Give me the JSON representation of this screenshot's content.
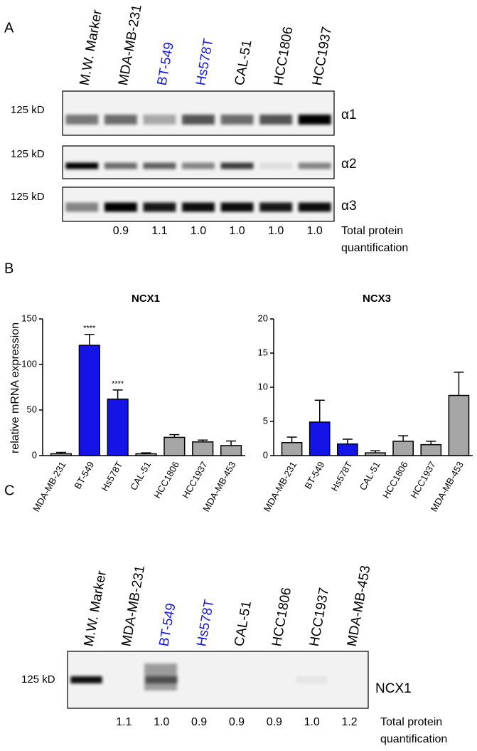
{
  "panel_labels": [
    "A",
    "B",
    "C"
  ],
  "blot_a": {
    "lanes": [
      {
        "label": "M.W. Marker",
        "color": "#000000"
      },
      {
        "label": "MDA-MB-231",
        "color": "#000000"
      },
      {
        "label": "BT-549",
        "color": "#1a1ad6"
      },
      {
        "label": "Hs578T",
        "color": "#1a1ad6"
      },
      {
        "label": "CAL-51",
        "color": "#000000"
      },
      {
        "label": "HCC1806",
        "color": "#000000"
      },
      {
        "label": "HCC1937",
        "color": "#000000"
      }
    ],
    "marker": "125 kD",
    "bands": [
      "α1",
      "α2",
      "α3"
    ],
    "quantification": [
      "0.9",
      "1.1",
      "1.0",
      "1.0",
      "1.0",
      "1.0"
    ],
    "quantification_label": [
      "Total protein",
      "quantification"
    ]
  },
  "chart_data": [
    {
      "type": "bar",
      "title": "NCX1",
      "ylabel": "relative mRNA expression",
      "categories": [
        "MDA-MB-231",
        "BT-549",
        "Hs578T",
        "CAL-51",
        "HCC1806",
        "HCC1937",
        "MDA-MB-453"
      ],
      "values": [
        2,
        121,
        62,
        2,
        20,
        15,
        11
      ],
      "errors": [
        1.5,
        12,
        10,
        1,
        3,
        2,
        5
      ],
      "colors": [
        "#a6a6a6",
        "#1414e6",
        "#1414e6",
        "#a6a6a6",
        "#a6a6a6",
        "#a6a6a6",
        "#a6a6a6"
      ],
      "significance": [
        null,
        "****",
        "****",
        null,
        null,
        null,
        null
      ],
      "ylim": [
        0,
        150
      ],
      "yticks": [
        0,
        50,
        100,
        150
      ]
    },
    {
      "type": "bar",
      "title": "NCX3",
      "categories": [
        "MDA-MB-231",
        "BT-549",
        "Hs578T",
        "CAL-51",
        "HCC1806",
        "HCC1937",
        "MDA-MB-453"
      ],
      "values": [
        1.9,
        4.9,
        1.7,
        0.4,
        2.1,
        1.6,
        8.8
      ],
      "errors": [
        0.8,
        3.2,
        0.7,
        0.3,
        0.8,
        0.5,
        3.4
      ],
      "colors": [
        "#a6a6a6",
        "#1414e6",
        "#1414e6",
        "#a6a6a6",
        "#a6a6a6",
        "#a6a6a6",
        "#a6a6a6"
      ],
      "ylim": [
        0,
        20
      ],
      "yticks": [
        0,
        5,
        10,
        15,
        20
      ]
    }
  ],
  "blot_c": {
    "lanes": [
      {
        "label": "M.W. Marker",
        "color": "#000000"
      },
      {
        "label": "MDA-MB-231",
        "color": "#000000"
      },
      {
        "label": "BT-549",
        "color": "#1a1ad6"
      },
      {
        "label": "Hs578T",
        "color": "#1a1ad6"
      },
      {
        "label": "CAL-51",
        "color": "#000000"
      },
      {
        "label": "HCC1806",
        "color": "#000000"
      },
      {
        "label": "HCC1937",
        "color": "#000000"
      },
      {
        "label": "MDA-MB-453",
        "color": "#000000"
      }
    ],
    "marker": "125 kD",
    "band": "NCX1",
    "quantification": [
      "1.1",
      "1.0",
      "0.9",
      "0.9",
      "0.9",
      "1.0",
      "1.2"
    ],
    "quantification_label": [
      "Total protein",
      "quantification"
    ]
  }
}
